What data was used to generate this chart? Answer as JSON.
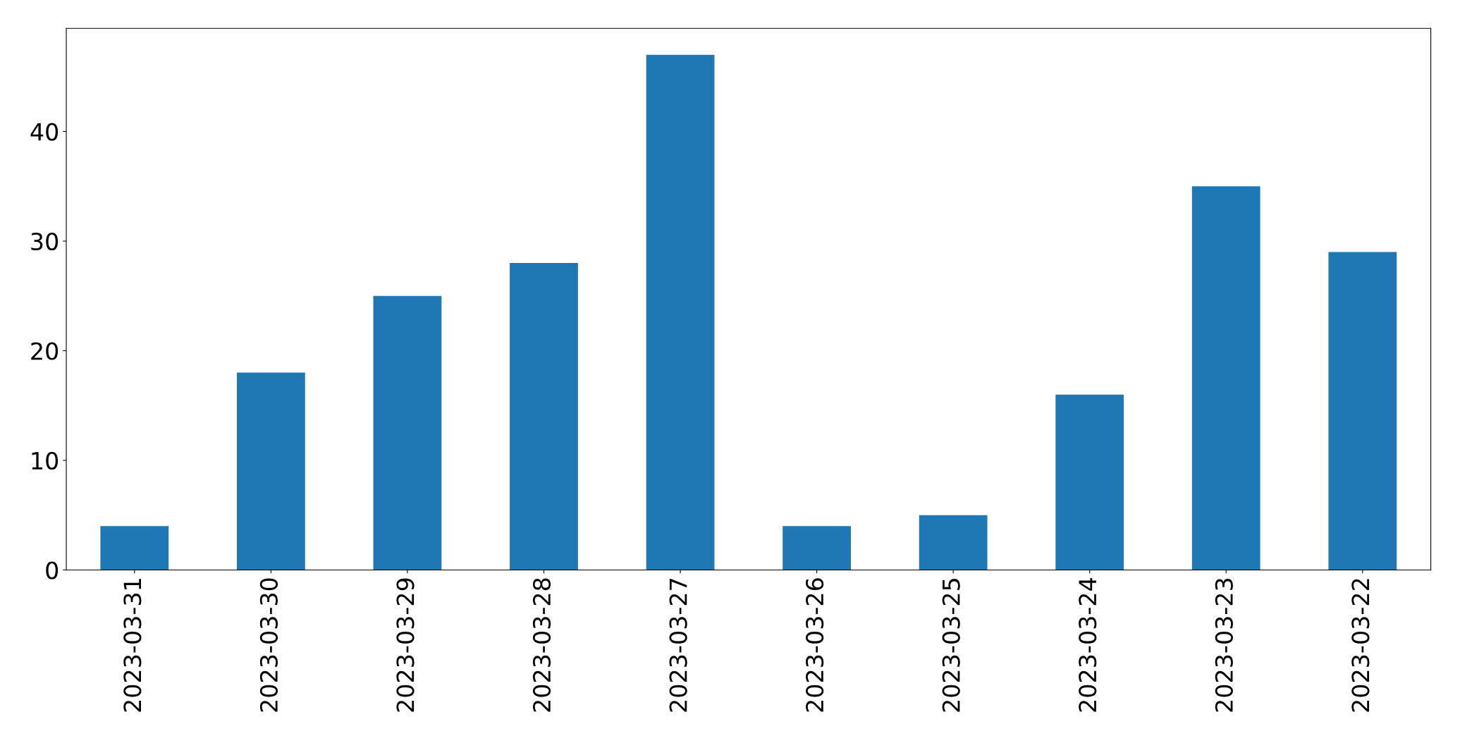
{
  "chart_data": {
    "type": "bar",
    "categories": [
      "2023-03-31",
      "2023-03-30",
      "2023-03-29",
      "2023-03-28",
      "2023-03-27",
      "2023-03-26",
      "2023-03-25",
      "2023-03-24",
      "2023-03-23",
      "2023-03-22"
    ],
    "values": [
      4,
      18,
      25,
      28,
      47,
      4,
      5,
      16,
      35,
      29
    ],
    "color": "#1f77b4",
    "ylim": [
      0,
      49.4
    ],
    "yticks": [
      0,
      10,
      20,
      30,
      40
    ],
    "grid": false,
    "legend": false
  }
}
